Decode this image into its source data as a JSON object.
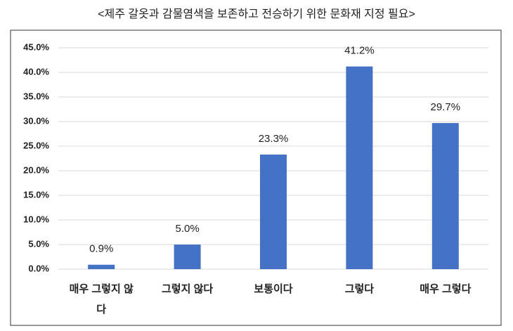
{
  "chart_data": {
    "type": "bar",
    "title": "<제주 갈옷과 감물염색을 보존하고 전승하기 위한 문화재 지정 필요>",
    "categories": [
      "매우 그렇지 않다",
      "그렇지 않다",
      "보통이다",
      "그렇다",
      "매우 그렇다"
    ],
    "values": [
      0.9,
      5.0,
      23.3,
      41.2,
      29.7
    ],
    "value_labels": [
      "0.9%",
      "5.0%",
      "23.3%",
      "41.2%",
      "29.7%"
    ],
    "color": "#4472c4",
    "ylim": [
      0,
      45
    ],
    "yticks": [
      {
        "value": 0,
        "label": "0.0%"
      },
      {
        "value": 5,
        "label": "5.0%"
      },
      {
        "value": 10,
        "label": "10.0%"
      },
      {
        "value": 15,
        "label": "15.0%"
      },
      {
        "value": 20,
        "label": "20.0%"
      },
      {
        "value": 25,
        "label": "25.0%"
      },
      {
        "value": 30,
        "label": "30.0%"
      },
      {
        "value": 35,
        "label": "35.0%"
      },
      {
        "value": 40,
        "label": "40.0%"
      },
      {
        "value": 45,
        "label": "45.0%"
      }
    ],
    "grid": true
  }
}
